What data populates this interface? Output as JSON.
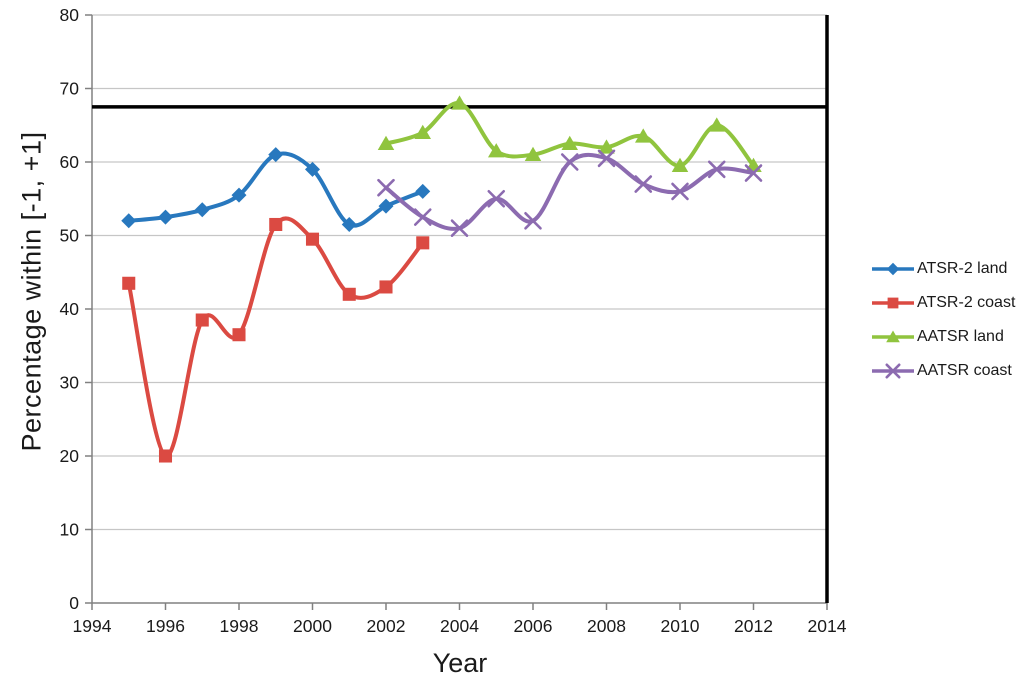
{
  "chart_data": {
    "type": "line",
    "title": "",
    "xlabel": "Year",
    "ylabel": "Percentage within [-1, +1]",
    "xlim": [
      1994,
      2014
    ],
    "ylim": [
      0,
      80
    ],
    "xticks": [
      1994,
      1996,
      1998,
      2000,
      2002,
      2004,
      2006,
      2008,
      2010,
      2012,
      2014
    ],
    "yticks": [
      0,
      10,
      20,
      30,
      40,
      50,
      60,
      70,
      80
    ],
    "grid": "horizontal",
    "legend_position": "right",
    "smooth_lines": true,
    "reference_line_y": 67.5,
    "reference_line_x": 2014,
    "style": {
      "reference_line_color": "#000000",
      "gridline_color": "#c6c6c6",
      "axis_color": "#808080",
      "text_color": "#1a1a1a",
      "background_color": "#ffffff"
    },
    "series": [
      {
        "name": "ATSR-2 land",
        "color": "#2878be",
        "marker": "diamond",
        "x": [
          1995,
          1996,
          1997,
          1998,
          1999,
          2000,
          2001,
          2002,
          2003
        ],
        "y": [
          52,
          52.5,
          53.5,
          55.5,
          61,
          59,
          51.5,
          54,
          56
        ]
      },
      {
        "name": "ATSR-2 coast",
        "color": "#db4a42",
        "marker": "square",
        "x": [
          1995,
          1996,
          1997,
          1998,
          1999,
          2000,
          2001,
          2002,
          2003
        ],
        "y": [
          43.5,
          20,
          38.5,
          36.5,
          51.5,
          49.5,
          42,
          43,
          49
        ]
      },
      {
        "name": "AATSR land",
        "color": "#90c43e",
        "marker": "triangle",
        "x": [
          2002,
          2003,
          2004,
          2005,
          2006,
          2007,
          2008,
          2009,
          2010,
          2011,
          2012
        ],
        "y": [
          62.5,
          64,
          68,
          61.5,
          61,
          62.5,
          62,
          63.5,
          59.5,
          65,
          59.5
        ]
      },
      {
        "name": "AATSR coast",
        "color": "#8c6bb0",
        "marker": "x",
        "x": [
          2002,
          2003,
          2004,
          2005,
          2006,
          2007,
          2008,
          2009,
          2010,
          2011,
          2012
        ],
        "y": [
          56.5,
          52.5,
          51,
          55,
          52,
          60,
          60.5,
          57,
          56,
          59,
          58.5
        ]
      }
    ]
  }
}
